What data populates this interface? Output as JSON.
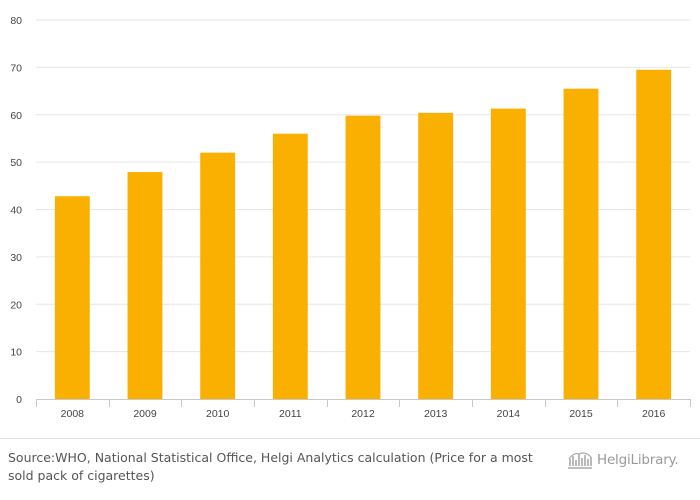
{
  "chart_data": {
    "type": "bar",
    "title": "",
    "xlabel": "",
    "ylabel": "",
    "categories": [
      "2008",
      "2009",
      "2010",
      "2011",
      "2012",
      "2013",
      "2014",
      "2015",
      "2016"
    ],
    "values": [
      42.8,
      47.9,
      52.0,
      56.0,
      59.8,
      60.4,
      61.3,
      65.5,
      69.5
    ],
    "ylim": [
      0,
      80
    ],
    "yticks": [
      "0",
      "10",
      "20",
      "30",
      "40",
      "50",
      "60",
      "70",
      "80"
    ],
    "bar_color": "#f9b000",
    "grid": true,
    "legend": "none"
  },
  "footer": {
    "source_prefix": "Source: ",
    "source_text": "WHO, National Statistical Office, Helgi Analytics calculation (Price for a most sold pack of cigarettes)",
    "logo_text": "HelgiLibrary."
  }
}
